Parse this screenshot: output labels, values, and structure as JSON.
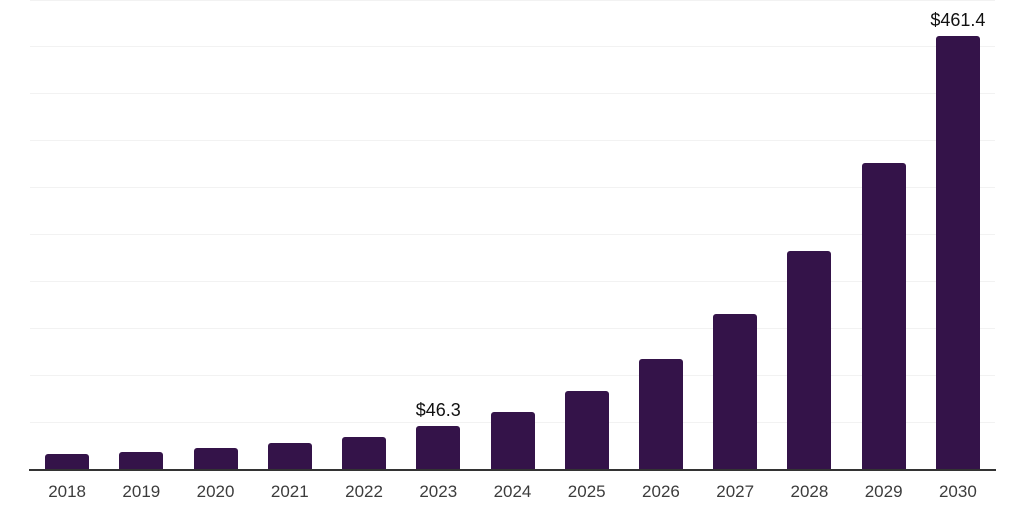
{
  "chart_data": {
    "type": "bar",
    "title": "",
    "xlabel": "",
    "ylabel": "",
    "categories": [
      "2018",
      "2019",
      "2020",
      "2021",
      "2022",
      "2023",
      "2024",
      "2025",
      "2026",
      "2027",
      "2028",
      "2029",
      "2030"
    ],
    "values": [
      16.5,
      19,
      23,
      29,
      35.5,
      46.3,
      62,
      84.5,
      118,
      166,
      233,
      327,
      461.4
    ],
    "annotations": [
      {
        "category": "2023",
        "text": "$46.3",
        "value": 46.3
      },
      {
        "category": "2030",
        "text": "$461.4",
        "value": 461.4
      }
    ],
    "ylim": [
      0,
      500
    ],
    "gridline_interval": 50,
    "grid": true,
    "legend": "none",
    "colors": {
      "bar": "#341349",
      "axis": "#333333",
      "gridline": "#f2f2f2",
      "tick_label": "#3c3c3c",
      "value_label": "#111111",
      "background": "#ffffff"
    }
  }
}
